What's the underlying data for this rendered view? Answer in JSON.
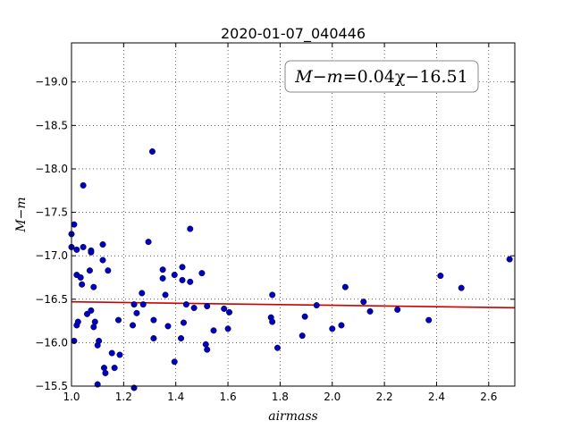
{
  "chart_data": {
    "type": "scatter",
    "title": "2020-01-07_040446",
    "xlabel": "airmass",
    "ylabel": "M−m",
    "xlim": [
      1.0,
      2.7
    ],
    "ylim": [
      -19.45,
      -15.5
    ],
    "y_inverted": true,
    "x_ticks": [
      1.0,
      1.2,
      1.4,
      1.6,
      1.8,
      2.0,
      2.2,
      2.4,
      2.6
    ],
    "x_tick_labels": [
      "1.0",
      "1.2",
      "1.4",
      "1.6",
      "1.8",
      "2.0",
      "2.2",
      "2.4",
      "2.6"
    ],
    "y_ticks": [
      -15.5,
      -16.0,
      -16.5,
      -17.0,
      -17.5,
      -18.0,
      -18.5,
      -19.0
    ],
    "y_tick_labels": [
      "−15.5",
      "−16.0",
      "−16.5",
      "−17.0",
      "−17.5",
      "−18.0",
      "−18.5",
      "−19.0"
    ],
    "grid": true,
    "annotation": {
      "lhs": "M−m",
      "rhs": "=0.04χ−16.51"
    },
    "fit": {
      "slope": 0.04,
      "intercept": -16.51,
      "x_range": [
        1.0,
        2.7
      ]
    },
    "colors": {
      "points": "#0000bf",
      "fit_line": "#cc0000",
      "grid": "#000000"
    },
    "points": [
      {
        "x": 1.0,
        "y": -17.25
      },
      {
        "x": 1.0,
        "y": -17.1
      },
      {
        "x": 1.01,
        "y": -16.02
      },
      {
        "x": 1.01,
        "y": -17.36
      },
      {
        "x": 1.02,
        "y": -16.78
      },
      {
        "x": 1.02,
        "y": -17.07
      },
      {
        "x": 1.02,
        "y": -16.2
      },
      {
        "x": 1.025,
        "y": -16.24
      },
      {
        "x": 1.035,
        "y": -16.75
      },
      {
        "x": 1.04,
        "y": -16.67
      },
      {
        "x": 1.045,
        "y": -17.81
      },
      {
        "x": 1.045,
        "y": -17.1
      },
      {
        "x": 1.06,
        "y": -16.33
      },
      {
        "x": 1.07,
        "y": -16.83
      },
      {
        "x": 1.075,
        "y": -16.37
      },
      {
        "x": 1.075,
        "y": -17.04
      },
      {
        "x": 1.075,
        "y": -17.06
      },
      {
        "x": 1.085,
        "y": -16.64
      },
      {
        "x": 1.085,
        "y": -16.18
      },
      {
        "x": 1.09,
        "y": -16.24
      },
      {
        "x": 1.1,
        "y": -15.52
      },
      {
        "x": 1.1,
        "y": -15.97
      },
      {
        "x": 1.105,
        "y": -16.02
      },
      {
        "x": 1.12,
        "y": -16.95
      },
      {
        "x": 1.12,
        "y": -17.13
      },
      {
        "x": 1.125,
        "y": -15.71
      },
      {
        "x": 1.13,
        "y": -15.65
      },
      {
        "x": 1.14,
        "y": -16.83
      },
      {
        "x": 1.155,
        "y": -15.88
      },
      {
        "x": 1.165,
        "y": -15.71
      },
      {
        "x": 1.18,
        "y": -16.26
      },
      {
        "x": 1.185,
        "y": -15.86
      },
      {
        "x": 1.235,
        "y": -16.2
      },
      {
        "x": 1.24,
        "y": -16.44
      },
      {
        "x": 1.24,
        "y": -15.48
      },
      {
        "x": 1.25,
        "y": -16.34
      },
      {
        "x": 1.27,
        "y": -16.57
      },
      {
        "x": 1.275,
        "y": -16.44
      },
      {
        "x": 1.295,
        "y": -17.16
      },
      {
        "x": 1.31,
        "y": -18.2
      },
      {
        "x": 1.315,
        "y": -16.26
      },
      {
        "x": 1.315,
        "y": -16.05
      },
      {
        "x": 1.35,
        "y": -16.74
      },
      {
        "x": 1.35,
        "y": -16.84
      },
      {
        "x": 1.36,
        "y": -16.55
      },
      {
        "x": 1.37,
        "y": -16.19
      },
      {
        "x": 1.395,
        "y": -15.78
      },
      {
        "x": 1.395,
        "y": -16.78
      },
      {
        "x": 1.42,
        "y": -16.05
      },
      {
        "x": 1.425,
        "y": -16.72
      },
      {
        "x": 1.425,
        "y": -16.87
      },
      {
        "x": 1.43,
        "y": -16.23
      },
      {
        "x": 1.44,
        "y": -16.44
      },
      {
        "x": 1.455,
        "y": -16.7
      },
      {
        "x": 1.455,
        "y": -17.31
      },
      {
        "x": 1.47,
        "y": -16.4
      },
      {
        "x": 1.5,
        "y": -16.8
      },
      {
        "x": 1.515,
        "y": -15.98
      },
      {
        "x": 1.52,
        "y": -15.92
      },
      {
        "x": 1.52,
        "y": -16.42
      },
      {
        "x": 1.545,
        "y": -16.14
      },
      {
        "x": 1.585,
        "y": -16.39
      },
      {
        "x": 1.6,
        "y": -16.16
      },
      {
        "x": 1.605,
        "y": -16.35
      },
      {
        "x": 1.765,
        "y": -16.29
      },
      {
        "x": 1.77,
        "y": -16.24
      },
      {
        "x": 1.77,
        "y": -16.55
      },
      {
        "x": 1.79,
        "y": -15.94
      },
      {
        "x": 1.885,
        "y": -16.08
      },
      {
        "x": 1.895,
        "y": -16.3
      },
      {
        "x": 1.94,
        "y": -16.43
      },
      {
        "x": 2.0,
        "y": -16.16
      },
      {
        "x": 2.035,
        "y": -16.2
      },
      {
        "x": 2.05,
        "y": -16.64
      },
      {
        "x": 2.12,
        "y": -16.47
      },
      {
        "x": 2.145,
        "y": -16.36
      },
      {
        "x": 2.25,
        "y": -16.38
      },
      {
        "x": 2.37,
        "y": -16.26
      },
      {
        "x": 2.415,
        "y": -16.77
      },
      {
        "x": 2.495,
        "y": -16.63
      },
      {
        "x": 2.68,
        "y": -16.96
      }
    ]
  }
}
